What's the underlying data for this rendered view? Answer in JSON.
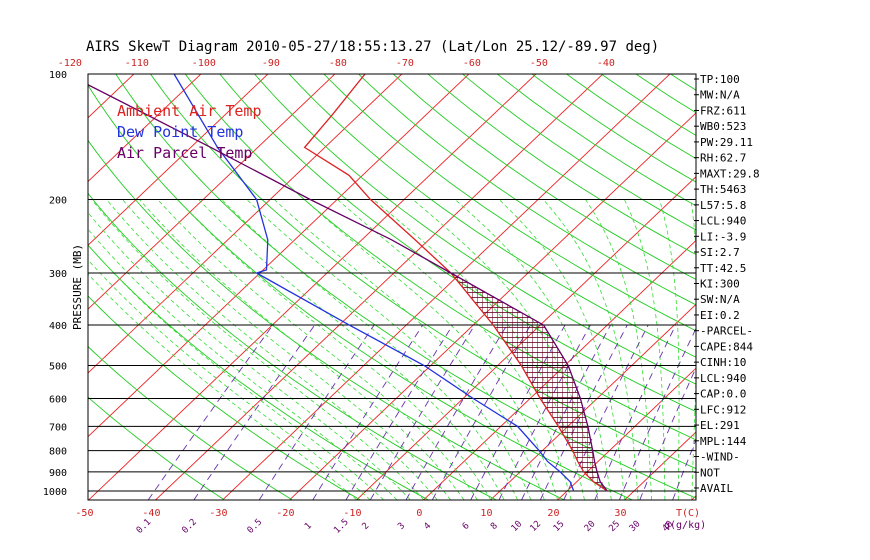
{
  "chart_data": {
    "type": "line",
    "title": "AIRS SkewT Diagram 2010-05-27/18:55:13.27 (Lat/Lon 25.12/-89.97 deg)",
    "ylabel": "PRESSURE (MB)",
    "xlabel_bottom": "T(C)",
    "mixing_ratio_unit": "q(g/kg)",
    "y_scale": "log",
    "ylim": [
      1050,
      100
    ],
    "pressure_ticks": [
      "100",
      "200",
      "300",
      "400",
      "500",
      "600",
      "700",
      "800",
      "900",
      "1000"
    ],
    "temp_ticks_bottom": [
      "-50",
      "-40",
      "-30",
      "-20",
      "-10",
      "0",
      "10",
      "20",
      "30"
    ],
    "temp_ticks_top": [
      "-120",
      "-110",
      "-100",
      "-90",
      "-80",
      "-70",
      "-60",
      "-50",
      "-40"
    ],
    "mixing_ratio_labels": [
      "0.1",
      "0.2",
      "0.5",
      "1",
      "1.5",
      "2",
      "3",
      "4",
      "6",
      "8",
      "10",
      "12",
      "15",
      "20",
      "25",
      "30",
      "40"
    ],
    "legend": [
      {
        "label": "Ambient Air Temp",
        "color": "#dd2222"
      },
      {
        "label": "Dew Point Temp",
        "color": "#2233dd"
      },
      {
        "label": "Air Parcel Temp",
        "color": "#660066"
      }
    ],
    "grid": true,
    "series": [
      {
        "name": "Ambient Air Temp",
        "color": "#dd2222",
        "points": [
          [
            1000,
            26
          ],
          [
            950,
            22.5
          ],
          [
            900,
            19.5
          ],
          [
            850,
            17
          ],
          [
            800,
            14.5
          ],
          [
            700,
            8.6
          ],
          [
            600,
            1.5
          ],
          [
            500,
            -6.5
          ],
          [
            400,
            -17
          ],
          [
            300,
            -31.5
          ],
          [
            250,
            -42
          ],
          [
            200,
            -55
          ],
          [
            175,
            -62
          ],
          [
            150,
            -73
          ],
          [
            125,
            -74
          ],
          [
            100,
            -75.5
          ]
        ]
      },
      {
        "name": "Dew Point Temp",
        "color": "#2233dd",
        "points": [
          [
            1000,
            21
          ],
          [
            950,
            19
          ],
          [
            900,
            16
          ],
          [
            850,
            12.5
          ],
          [
            800,
            9.5
          ],
          [
            700,
            2.5
          ],
          [
            600,
            -8.5
          ],
          [
            500,
            -21
          ],
          [
            400,
            -38.5
          ],
          [
            300,
            -60.5
          ],
          [
            295,
            -59.5
          ],
          [
            250,
            -64
          ],
          [
            200,
            -72
          ],
          [
            150,
            -86
          ],
          [
            100,
            -104
          ]
        ]
      },
      {
        "name": "Air Parcel Temp",
        "color": "#660066",
        "points": [
          [
            1000,
            26
          ],
          [
            950,
            23.5
          ],
          [
            900,
            21.5
          ],
          [
            850,
            19.5
          ],
          [
            800,
            17.5
          ],
          [
            700,
            13
          ],
          [
            600,
            7.5
          ],
          [
            500,
            0.5
          ],
          [
            400,
            -9.5
          ],
          [
            300,
            -31.5
          ],
          [
            250,
            -45.5
          ],
          [
            200,
            -64
          ],
          [
            150,
            -87
          ],
          [
            100,
            -120
          ]
        ]
      }
    ],
    "indices": [
      "TP:100",
      "MW:N/A",
      "FRZ:611",
      "WB0:523",
      "PW:29.11",
      "RH:62.7",
      "MAXT:29.8",
      "TH:5463",
      "L57:5.8",
      "LCL:940",
      "LI:-3.9",
      "SI:2.7",
      "TT:42.5",
      "KI:300",
      "SW:N/A",
      "EI:0.2",
      "-PARCEL-",
      "CAPE:844",
      "CINH:10",
      "LCL:940",
      "CAP:0.0",
      "LFC:912",
      "EL:291",
      "MPL:144",
      "-WIND-",
      "NOT",
      "AVAIL"
    ],
    "colors": {
      "isotherm": "#ee2222",
      "dry_adiabat": "#22cc22",
      "moist_adiabat": "#33dd33",
      "mixing_ratio": "#6633aa",
      "isobar": "#000000",
      "tick_labels": "#cc2222"
    }
  }
}
